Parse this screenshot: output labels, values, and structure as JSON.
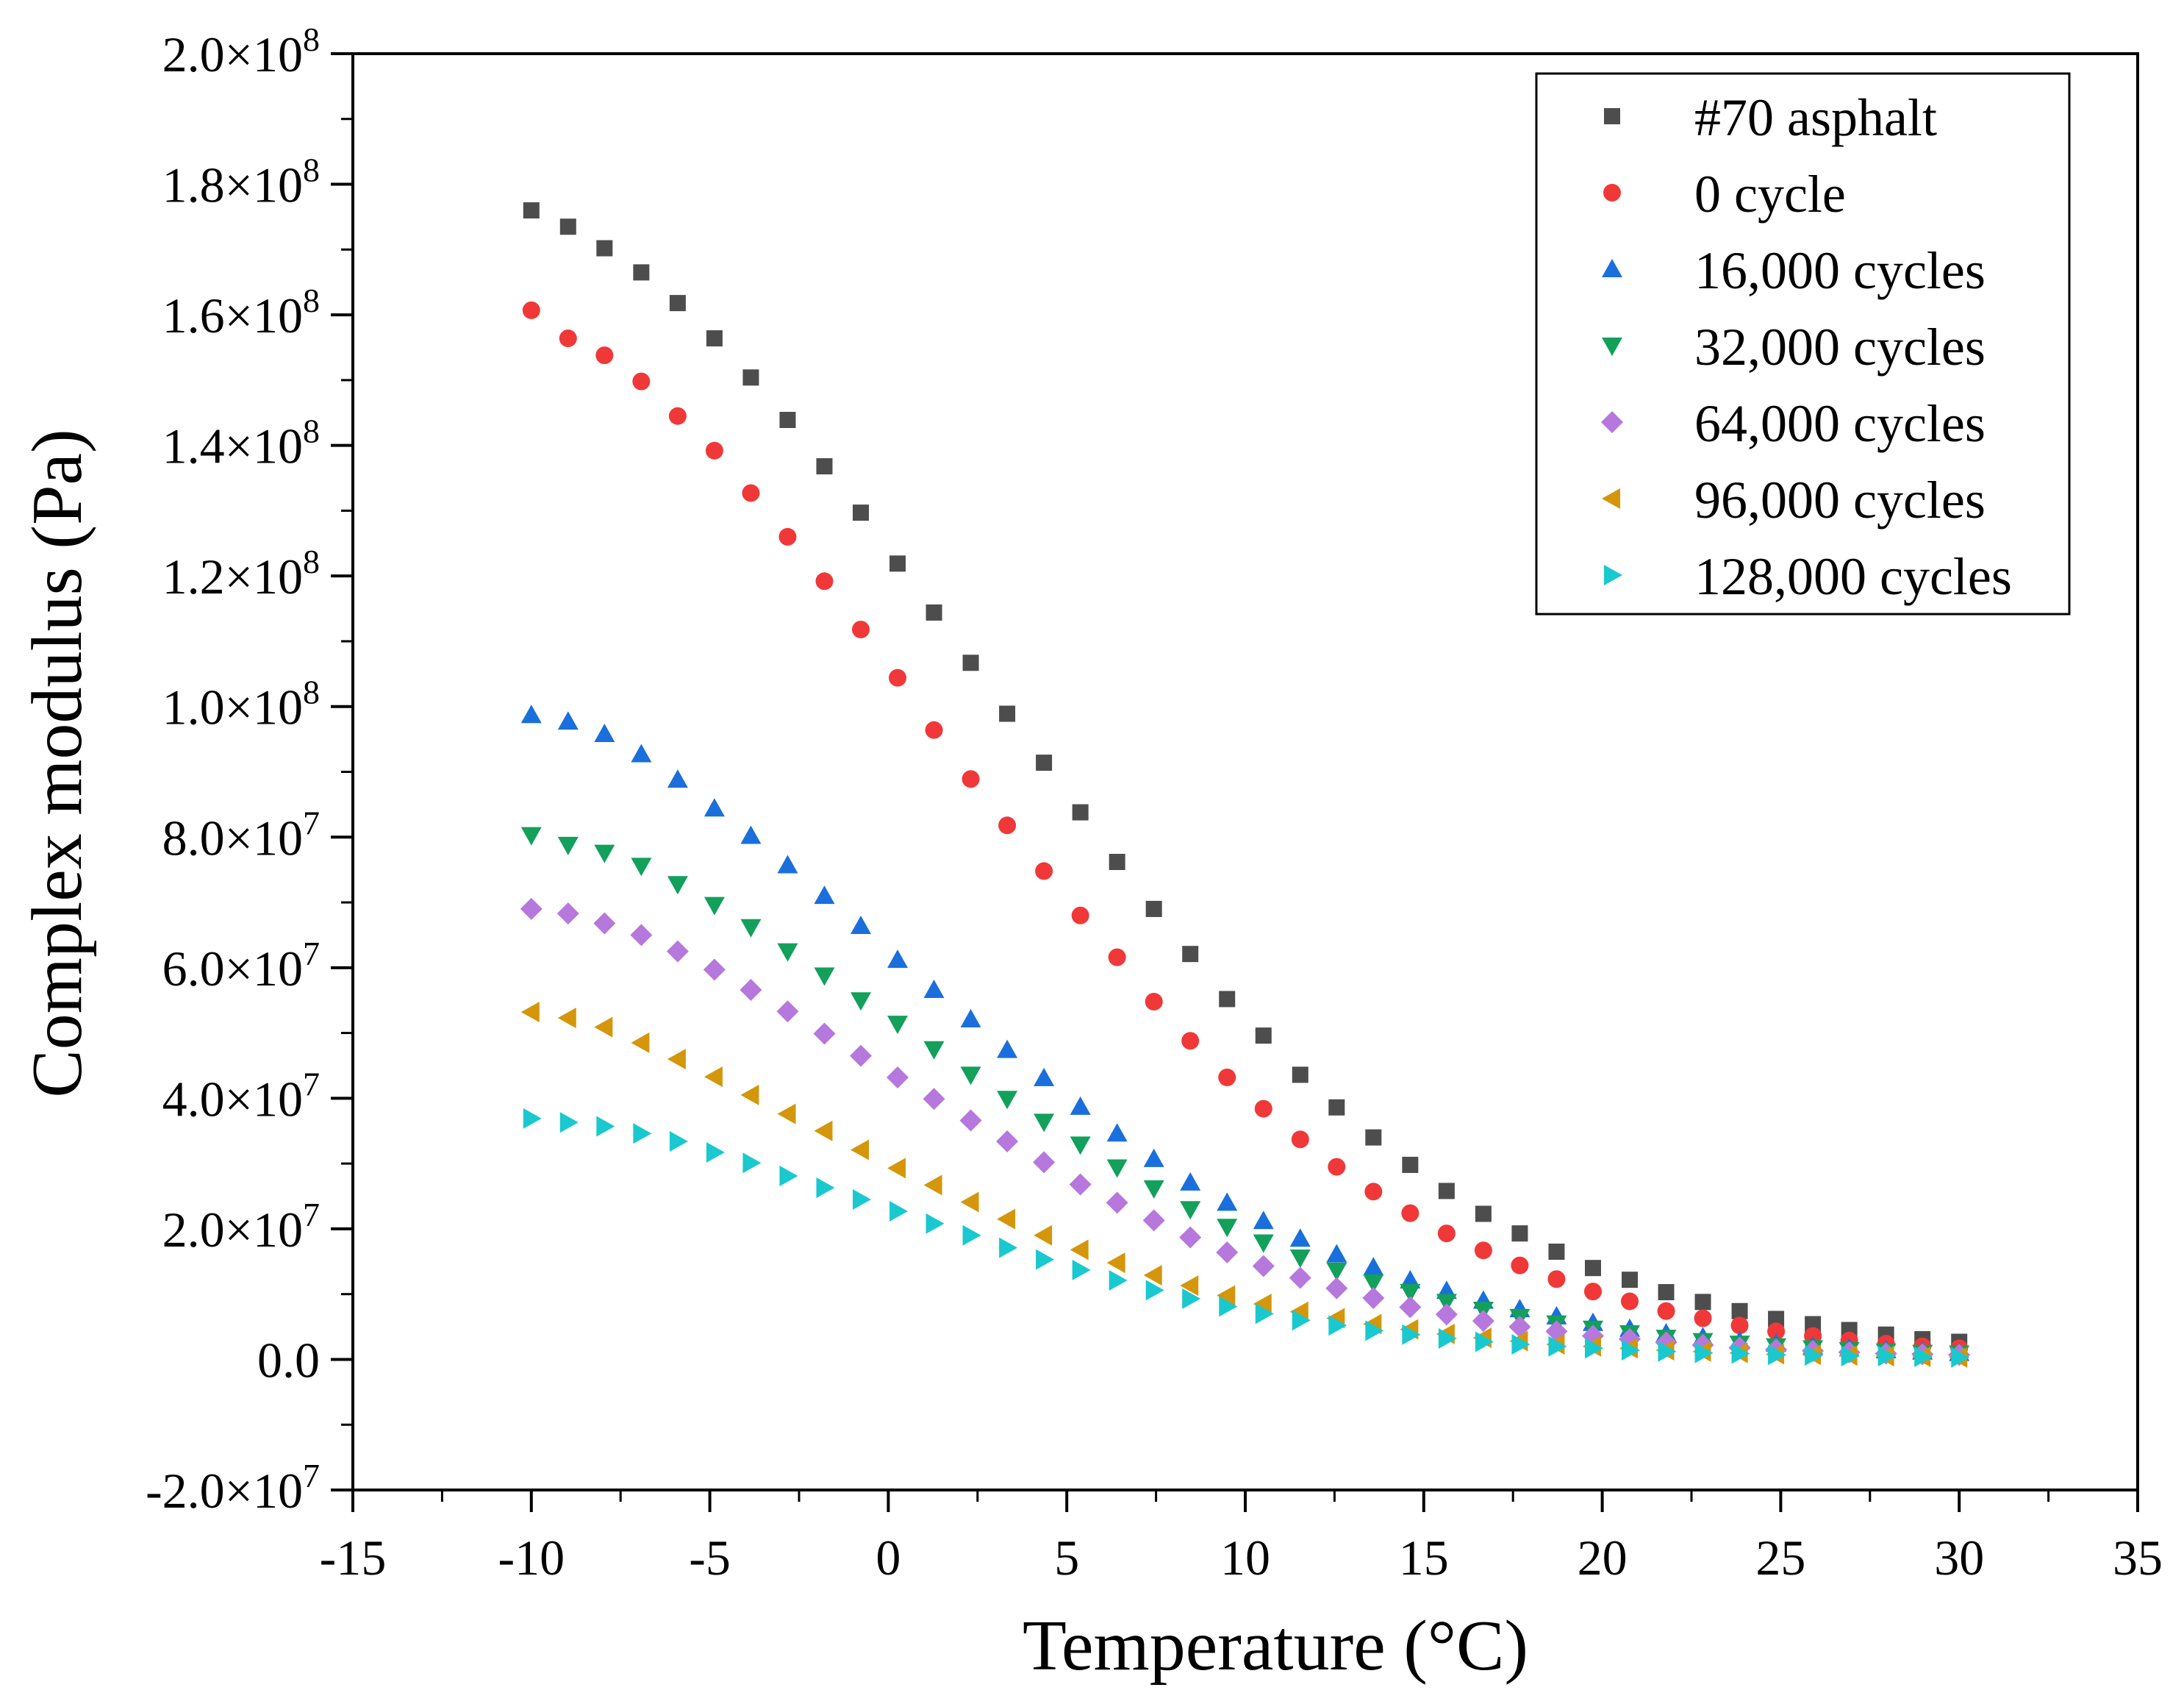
{
  "chart_data": {
    "type": "scatter",
    "title": "",
    "xlabel": "Temperature (°C)",
    "ylabel": "Complex modulus (Pa)",
    "xlim": [
      -15,
      35
    ],
    "ylim": [
      -20000000,
      200000000
    ],
    "x_ticks": [
      -15,
      -10,
      -5,
      0,
      5,
      10,
      15,
      20,
      25,
      30,
      35
    ],
    "x_tick_labels": [
      "-15",
      "-10",
      "-5",
      "0",
      "5",
      "10",
      "15",
      "20",
      "25",
      "30",
      "35"
    ],
    "y_ticks": [
      -20000000,
      0,
      20000000,
      40000000,
      60000000,
      80000000,
      100000000,
      120000000,
      140000000,
      160000000,
      180000000,
      200000000
    ],
    "y_tick_labels": [
      {
        "mantissa": "-2.0",
        "exp": "7"
      },
      {
        "mantissa": "0.0",
        "exp": ""
      },
      {
        "mantissa": "2.0",
        "exp": "7"
      },
      {
        "mantissa": "4.0",
        "exp": "7"
      },
      {
        "mantissa": "6.0",
        "exp": "7"
      },
      {
        "mantissa": "8.0",
        "exp": "7"
      },
      {
        "mantissa": "1.0",
        "exp": "8"
      },
      {
        "mantissa": "1.2",
        "exp": "8"
      },
      {
        "mantissa": "1.4",
        "exp": "8"
      },
      {
        "mantissa": "1.6",
        "exp": "8"
      },
      {
        "mantissa": "1.8",
        "exp": "8"
      },
      {
        "mantissa": "2.0",
        "exp": "8"
      }
    ],
    "grid": false,
    "legend_position": "top-right",
    "x": [
      -10,
      -8.97,
      -7.95,
      -6.92,
      -5.9,
      -4.87,
      -3.85,
      -2.82,
      -1.79,
      -0.77,
      0.26,
      1.28,
      2.31,
      3.33,
      4.36,
      5.38,
      6.41,
      7.44,
      8.46,
      9.49,
      10.51,
      11.54,
      12.56,
      13.59,
      14.62,
      15.64,
      16.67,
      17.69,
      18.72,
      19.74,
      20.77,
      21.79,
      22.82,
      23.85,
      24.87,
      25.9,
      26.92,
      27.95,
      28.97,
      30
    ],
    "series": [
      {
        "name": "#70 asphalt",
        "marker": "square",
        "color": "#4d4d4d",
        "values": [
          176000000,
          173500000,
          170200000,
          166500000,
          161800000,
          156400000,
          150400000,
          143900000,
          136800000,
          129700000,
          121900000,
          114400000,
          106700000,
          98900000,
          91400000,
          83800000,
          76200000,
          69000000,
          62100000,
          55200000,
          49600000,
          43600000,
          38600000,
          34000000,
          29800000,
          25800000,
          22300000,
          19300000,
          16500000,
          14000000,
          12200000,
          10300000,
          8800000,
          7400000,
          6200000,
          5400000,
          4500000,
          3800000,
          3100000,
          2700000
        ]
      },
      {
        "name": "0 cycle",
        "marker": "circle",
        "color": "#f03838",
        "values": [
          160700000,
          156400000,
          153800000,
          149800000,
          144500000,
          139200000,
          132700000,
          126000000,
          119200000,
          111800000,
          104400000,
          96400000,
          88900000,
          81800000,
          74800000,
          68000000,
          61600000,
          54800000,
          48800000,
          43200000,
          38400000,
          33700000,
          29500000,
          25700000,
          22400000,
          19300000,
          16700000,
          14400000,
          12300000,
          10400000,
          8900000,
          7400000,
          6300000,
          5200000,
          4300000,
          3600000,
          2900000,
          2400000,
          2000000,
          1700000
        ]
      },
      {
        "name": "16,000 cycles",
        "marker": "triangle-up",
        "color": "#1a6fdc",
        "values": [
          98700000,
          97700000,
          95800000,
          92700000,
          88800000,
          84400000,
          80200000,
          75700000,
          71000000,
          66400000,
          61200000,
          56600000,
          52100000,
          47400000,
          43100000,
          38700000,
          34600000,
          30700000,
          27100000,
          24000000,
          21200000,
          18500000,
          16100000,
          14100000,
          12100000,
          10500000,
          9000000,
          7700000,
          6600000,
          5600000,
          4700000,
          4000000,
          3400000,
          2800000,
          2400000,
          2000000,
          1700000,
          1400000,
          1200000,
          1000000
        ]
      },
      {
        "name": "32,000 cycles",
        "marker": "triangle-down",
        "color": "#12a05b",
        "values": [
          80300000,
          78800000,
          77600000,
          75600000,
          72800000,
          69600000,
          66200000,
          62500000,
          58800000,
          55000000,
          51400000,
          47500000,
          43600000,
          39900000,
          36400000,
          32900000,
          29400000,
          26200000,
          23000000,
          20300000,
          17900000,
          15600000,
          13600000,
          11800000,
          10300000,
          8800000,
          7600000,
          6500000,
          5500000,
          4700000,
          4000000,
          3300000,
          2800000,
          2400000,
          2000000,
          1700000,
          1400000,
          1200000,
          1000000,
          900000
        ]
      },
      {
        "name": "64,000 cycles",
        "marker": "diamond",
        "color": "#b678dc",
        "values": [
          69000000,
          68300000,
          66800000,
          65000000,
          62500000,
          59700000,
          56600000,
          53300000,
          49900000,
          46500000,
          43200000,
          39900000,
          36600000,
          33400000,
          30200000,
          26800000,
          24000000,
          21300000,
          18700000,
          16400000,
          14300000,
          12500000,
          10900000,
          9400000,
          8000000,
          6900000,
          5900000,
          5000000,
          4300000,
          3600000,
          3100000,
          2600000,
          2200000,
          1800000,
          1500000,
          1300000,
          1100000,
          900000,
          800000,
          700000
        ]
      },
      {
        "name": "96,000 cycles",
        "marker": "triangle-left",
        "color": "#d4960a",
        "values": [
          53200000,
          52300000,
          50900000,
          48500000,
          46000000,
          43300000,
          40500000,
          37600000,
          35000000,
          32100000,
          29300000,
          26700000,
          24100000,
          21500000,
          19000000,
          16800000,
          14800000,
          12900000,
          11300000,
          9800000,
          8500000,
          7300000,
          6300000,
          5400000,
          4600000,
          3900000,
          3300000,
          2800000,
          2300000,
          2000000,
          1700000,
          1400000,
          1200000,
          1000000,
          800000,
          700000,
          600000,
          500000,
          400000,
          300000
        ]
      },
      {
        "name": "128,000 cycles",
        "marker": "triangle-right",
        "color": "#19c9cf",
        "values": [
          36900000,
          36300000,
          35700000,
          34600000,
          33400000,
          31700000,
          30100000,
          28100000,
          26300000,
          24500000,
          22700000,
          20800000,
          19000000,
          17100000,
          15300000,
          13700000,
          12100000,
          10600000,
          9300000,
          8100000,
          7000000,
          6000000,
          5200000,
          4400000,
          3800000,
          3200000,
          2700000,
          2300000,
          2000000,
          1700000,
          1400000,
          1200000,
          1000000,
          900000,
          700000,
          600000,
          500000,
          500000,
          400000,
          300000
        ]
      }
    ]
  }
}
